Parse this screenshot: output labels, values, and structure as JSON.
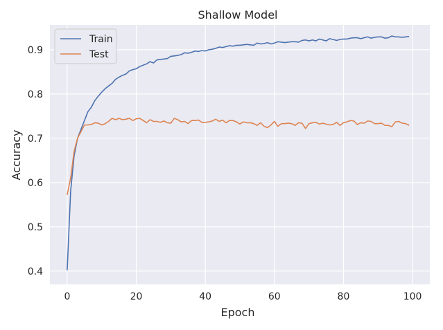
{
  "chart_data": {
    "type": "line",
    "title": "Shallow Model",
    "xlabel": "Epoch",
    "ylabel": "Accuracy",
    "xlim": [
      -5,
      105
    ],
    "ylim": [
      0.37,
      0.956
    ],
    "xticks": [
      0,
      20,
      40,
      60,
      80,
      100
    ],
    "yticks": [
      0.4,
      0.5,
      0.6,
      0.7,
      0.8,
      0.9
    ],
    "xtick_labels": [
      "0",
      "20",
      "40",
      "60",
      "80",
      "100"
    ],
    "ytick_labels": [
      "0.4",
      "0.5",
      "0.6",
      "0.7",
      "0.8",
      "0.9"
    ],
    "grid": true,
    "legend_position": "upper-left",
    "background_color": "#EAEAF2",
    "grid_color": "#FFFFFF",
    "series": [
      {
        "name": "Train",
        "color": "#4C72B0",
        "x": [
          0,
          1,
          2,
          3,
          4,
          5,
          6,
          7,
          8,
          9,
          10,
          11,
          12,
          13,
          14,
          15,
          16,
          17,
          18,
          19,
          20,
          21,
          22,
          23,
          24,
          25,
          26,
          27,
          28,
          29,
          30,
          31,
          32,
          33,
          34,
          35,
          36,
          37,
          38,
          39,
          40,
          41,
          42,
          43,
          44,
          45,
          46,
          47,
          48,
          49,
          50,
          51,
          52,
          53,
          54,
          55,
          56,
          57,
          58,
          59,
          60,
          61,
          62,
          63,
          64,
          65,
          66,
          67,
          68,
          69,
          70,
          71,
          72,
          73,
          74,
          75,
          76,
          77,
          78,
          79,
          80,
          81,
          82,
          83,
          84,
          85,
          86,
          87,
          88,
          89,
          90,
          91,
          92,
          93,
          94,
          95,
          96,
          97,
          98,
          99
        ],
        "values": [
          0.402,
          0.58,
          0.66,
          0.7,
          0.72,
          0.74,
          0.76,
          0.77,
          0.785,
          0.795,
          0.804,
          0.812,
          0.818,
          0.824,
          0.833,
          0.838,
          0.842,
          0.845,
          0.852,
          0.855,
          0.857,
          0.862,
          0.865,
          0.868,
          0.873,
          0.87,
          0.877,
          0.878,
          0.879,
          0.88,
          0.885,
          0.886,
          0.887,
          0.889,
          0.893,
          0.892,
          0.894,
          0.897,
          0.896,
          0.898,
          0.897,
          0.9,
          0.901,
          0.903,
          0.906,
          0.905,
          0.907,
          0.909,
          0.908,
          0.91,
          0.91,
          0.911,
          0.912,
          0.911,
          0.91,
          0.915,
          0.913,
          0.914,
          0.916,
          0.913,
          0.915,
          0.918,
          0.917,
          0.916,
          0.917,
          0.918,
          0.918,
          0.917,
          0.921,
          0.922,
          0.92,
          0.922,
          0.92,
          0.924,
          0.922,
          0.92,
          0.925,
          0.923,
          0.921,
          0.923,
          0.924,
          0.924,
          0.926,
          0.927,
          0.927,
          0.925,
          0.927,
          0.929,
          0.926,
          0.928,
          0.929,
          0.929,
          0.926,
          0.927,
          0.931,
          0.929,
          0.929,
          0.928,
          0.929,
          0.93
        ]
      },
      {
        "name": "Test",
        "color": "#DD8452",
        "x": [
          0,
          1,
          2,
          3,
          4,
          5,
          6,
          7,
          8,
          9,
          10,
          11,
          12,
          13,
          14,
          15,
          16,
          17,
          18,
          19,
          20,
          21,
          22,
          23,
          24,
          25,
          26,
          27,
          28,
          29,
          30,
          31,
          32,
          33,
          34,
          35,
          36,
          37,
          38,
          39,
          40,
          41,
          42,
          43,
          44,
          45,
          46,
          47,
          48,
          49,
          50,
          51,
          52,
          53,
          54,
          55,
          56,
          57,
          58,
          59,
          60,
          61,
          62,
          63,
          64,
          65,
          66,
          67,
          68,
          69,
          70,
          71,
          72,
          73,
          74,
          75,
          76,
          77,
          78,
          79,
          80,
          81,
          82,
          83,
          84,
          85,
          86,
          87,
          88,
          89,
          90,
          91,
          92,
          93,
          94,
          95,
          96,
          97,
          98,
          99
        ],
        "values": [
          0.572,
          0.61,
          0.67,
          0.7,
          0.715,
          0.73,
          0.73,
          0.731,
          0.735,
          0.734,
          0.73,
          0.733,
          0.738,
          0.745,
          0.742,
          0.745,
          0.742,
          0.743,
          0.745,
          0.74,
          0.744,
          0.745,
          0.74,
          0.735,
          0.742,
          0.738,
          0.738,
          0.736,
          0.739,
          0.735,
          0.734,
          0.745,
          0.742,
          0.737,
          0.738,
          0.733,
          0.74,
          0.74,
          0.741,
          0.736,
          0.736,
          0.737,
          0.739,
          0.743,
          0.738,
          0.741,
          0.735,
          0.74,
          0.74,
          0.737,
          0.732,
          0.737,
          0.735,
          0.735,
          0.733,
          0.729,
          0.735,
          0.727,
          0.724,
          0.73,
          0.738,
          0.727,
          0.733,
          0.733,
          0.734,
          0.733,
          0.729,
          0.735,
          0.734,
          0.722,
          0.733,
          0.735,
          0.736,
          0.732,
          0.734,
          0.732,
          0.73,
          0.731,
          0.736,
          0.729,
          0.735,
          0.737,
          0.74,
          0.739,
          0.731,
          0.735,
          0.734,
          0.739,
          0.738,
          0.733,
          0.733,
          0.734,
          0.729,
          0.729,
          0.726,
          0.737,
          0.738,
          0.734,
          0.733,
          0.729
        ]
      }
    ]
  }
}
